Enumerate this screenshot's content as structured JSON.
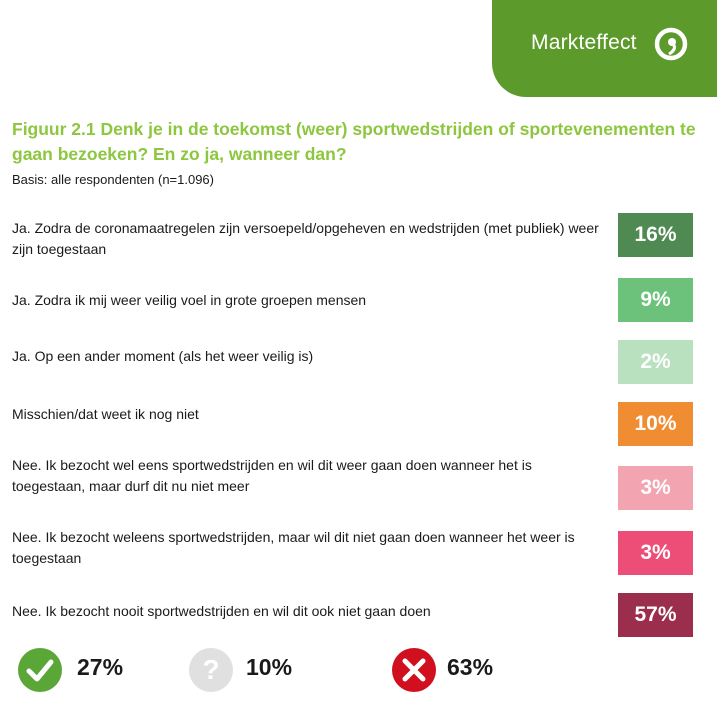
{
  "brand": {
    "name": "Markteffect",
    "color": "#5d9a2c"
  },
  "header": {
    "title": "Figuur 2.1 Denk je in de toekomst (weer) sportwedstrijden of sportevenementen te gaan bezoeken? En zo ja, wanneer dan?",
    "subtitle": "Basis: alle respondenten (n=1.096)"
  },
  "chart_data": {
    "type": "table",
    "categories": [
      "Ja. Zodra de coronamaatregelen zijn versoepeld/opgeheven en wedstrijden (met publiek) weer zijn toegestaan",
      "Ja. Zodra ik mij weer veilig voel in grote groepen mensen",
      "Ja. Op een ander moment (als het weer veilig is)",
      "Misschien/dat weet ik nog niet",
      "Nee. Ik bezocht wel eens sportwedstrijden en wil dit weer gaan doen wanneer het is toegestaan, maar durf dit nu niet meer",
      "Nee. Ik bezocht weleens sportwedstrijden, maar wil dit niet gaan doen wanneer het weer is toegestaan",
      "Nee. Ik bezocht nooit sportwedstrijden en wil dit ook niet gaan doen"
    ],
    "values": [
      16,
      9,
      2,
      10,
      3,
      3,
      57
    ],
    "value_labels": [
      "16%",
      "9%",
      "2%",
      "10%",
      "3%",
      "3%",
      "57%"
    ],
    "colors": [
      "#4e8a52",
      "#6cc17b",
      "#b9e0bf",
      "#f08d33",
      "#f2a4b1",
      "#ec4e78",
      "#9b2e4c"
    ],
    "summary": [
      {
        "icon": "check-icon",
        "label": "27%",
        "value": 27,
        "color": "#5aa637"
      },
      {
        "icon": "question-icon",
        "label": "10%",
        "value": 10,
        "color": "#e0e0e0"
      },
      {
        "icon": "cross-icon",
        "label": "63%",
        "value": 63,
        "color": "#d0101f"
      }
    ]
  }
}
